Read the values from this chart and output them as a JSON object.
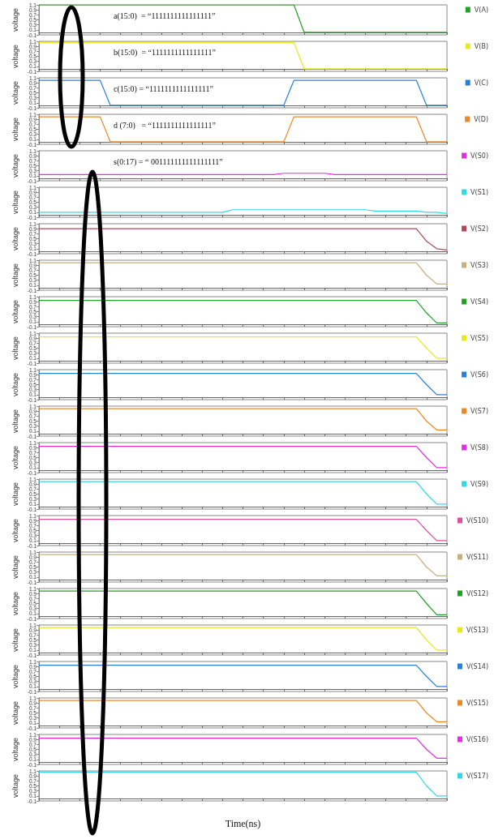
{
  "chart_data": [
    {
      "type": "line",
      "ylabel": "voltage",
      "ylim": [
        -0.1,
        1.1
      ],
      "yticks": [
        -0.1,
        0.1,
        0.3,
        0.5,
        0.7,
        0.9,
        1.1
      ],
      "tick_labels": "y",
      "legend": "right",
      "marker": "none",
      "line_style": "solid",
      "annotations": [
        "a(15:0)  = “1111111111111111”"
      ],
      "categories": [
        null,
        null,
        null,
        null,
        null,
        null,
        null,
        null,
        null,
        null,
        null,
        null,
        null,
        null,
        null,
        null,
        null,
        null,
        null,
        null,
        null,
        null,
        null,
        null,
        null,
        null,
        null,
        null,
        null,
        null,
        null,
        null,
        null,
        null,
        null,
        null,
        null,
        null,
        null,
        null,
        null
      ],
      "series": [
        {
          "name": "V(A)",
          "color": "#22a02a",
          "values": [
            1.1,
            1.1,
            1.1,
            1.1,
            1.1,
            1.1,
            1.1,
            1.1,
            1.1,
            1.1,
            1.1,
            1.1,
            1.1,
            1.1,
            1.1,
            1.1,
            1.1,
            1.1,
            1.1,
            1.1,
            1.1,
            1.1,
            1.1,
            1.1,
            1.1,
            1.1,
            0,
            0,
            0,
            0,
            0,
            0,
            0,
            0,
            0,
            0,
            0,
            0,
            0,
            0,
            0
          ]
        }
      ]
    },
    {
      "type": "line",
      "ylabel": "voltage",
      "ylim": [
        -0.1,
        1.1
      ],
      "yticks": [
        -0.1,
        0.1,
        0.3,
        0.5,
        0.7,
        0.9,
        1.1
      ],
      "tick_labels": "y",
      "legend": "right",
      "marker": "none",
      "line_style": "solid",
      "annotations": [
        "b(15:0)  = “1111111111111111”"
      ],
      "categories": [
        null,
        null,
        null,
        null,
        null,
        null,
        null,
        null,
        null,
        null,
        null,
        null,
        null,
        null,
        null,
        null,
        null,
        null,
        null,
        null,
        null,
        null,
        null,
        null,
        null,
        null,
        null,
        null,
        null,
        null,
        null,
        null,
        null,
        null,
        null,
        null,
        null,
        null,
        null,
        null,
        null
      ],
      "series": [
        {
          "name": "V(B)",
          "color": "#e8e820",
          "values": [
            1.05,
            1.05,
            1.05,
            1.05,
            1.05,
            1.05,
            1.05,
            1.05,
            1.05,
            1.05,
            1.05,
            1.05,
            1.05,
            1.05,
            1.05,
            1.05,
            1.05,
            1.05,
            1.05,
            1.05,
            1.05,
            1.05,
            1.05,
            1.05,
            1.05,
            1.05,
            0,
            0,
            0,
            0,
            0,
            0,
            0,
            0,
            0,
            0,
            0,
            0,
            0,
            0,
            0
          ]
        }
      ]
    },
    {
      "type": "line",
      "ylabel": "voltage",
      "ylim": [
        -0.1,
        1.1
      ],
      "yticks": [
        -0.1,
        0.1,
        0.3,
        0.5,
        0.7,
        0.9,
        1.1
      ],
      "tick_labels": "y",
      "legend": "right",
      "marker": "none",
      "line_style": "solid",
      "annotations": [
        "c(15:0) = “1111111111111111”"
      ],
      "categories": [
        null,
        null,
        null,
        null,
        null,
        null,
        null,
        null,
        null,
        null,
        null,
        null,
        null,
        null,
        null,
        null,
        null,
        null,
        null,
        null,
        null,
        null,
        null,
        null,
        null,
        null,
        null,
        null,
        null,
        null,
        null,
        null,
        null,
        null,
        null,
        null,
        null,
        null,
        null,
        null,
        null
      ],
      "series": [
        {
          "name": "V(C)",
          "color": "#2a80d8",
          "values": [
            1.0,
            1.0,
            1.0,
            1.0,
            1.0,
            1.0,
            1.0,
            0,
            0,
            0,
            0,
            0,
            0,
            0,
            0,
            0,
            0,
            0,
            0,
            0,
            0,
            0,
            0,
            0,
            0,
            1.0,
            1.0,
            1.0,
            1.0,
            1.0,
            1.0,
            1.0,
            1.0,
            1.0,
            1.0,
            1.0,
            1.0,
            1.0,
            0,
            0,
            0
          ]
        }
      ]
    },
    {
      "type": "line",
      "ylabel": "voltage",
      "ylim": [
        -0.1,
        1.1
      ],
      "yticks": [
        -0.1,
        0.1,
        0.3,
        0.5,
        0.7,
        0.9,
        1.1
      ],
      "tick_labels": "y",
      "legend": "right",
      "marker": "none",
      "line_style": "solid",
      "annotations": [
        "d (7:0)   = “1111111111111111”"
      ],
      "categories": [
        null,
        null,
        null,
        null,
        null,
        null,
        null,
        null,
        null,
        null,
        null,
        null,
        null,
        null,
        null,
        null,
        null,
        null,
        null,
        null,
        null,
        null,
        null,
        null,
        null,
        null,
        null,
        null,
        null,
        null,
        null,
        null,
        null,
        null,
        null,
        null,
        null,
        null,
        null,
        null,
        null
      ],
      "series": [
        {
          "name": "V(D)",
          "color": "#e8892a",
          "values": [
            1.0,
            1.0,
            1.0,
            1.0,
            1.0,
            1.0,
            1.0,
            0,
            0,
            0,
            0,
            0,
            0,
            0,
            0,
            0,
            0,
            0,
            0,
            0,
            0,
            0,
            0,
            0,
            0,
            1.0,
            1.0,
            1.0,
            1.0,
            1.0,
            1.0,
            1.0,
            1.0,
            1.0,
            1.0,
            1.0,
            1.0,
            1.0,
            0,
            0,
            0
          ]
        }
      ]
    },
    {
      "type": "line",
      "ylabel": "voltage",
      "ylim": [
        -0.1,
        1.1
      ],
      "yticks": [
        -0.1,
        0.1,
        0.3,
        0.5,
        0.7,
        0.9,
        1.1
      ],
      "tick_labels": "y",
      "legend": "right",
      "marker": "none",
      "line_style": "solid",
      "annotations": [
        "s(0:17) = “ 001111111111111111”"
      ],
      "categories": [
        null,
        null,
        null,
        null,
        null,
        null,
        null,
        null,
        null,
        null,
        null,
        null,
        null,
        null,
        null,
        null,
        null,
        null,
        null,
        null,
        null,
        null,
        null,
        null,
        null,
        null,
        null,
        null,
        null,
        null,
        null,
        null,
        null,
        null,
        null,
        null,
        null,
        null,
        null,
        null,
        null
      ],
      "series": [
        {
          "name": "V(S0)",
          "color": "#e030e0",
          "values": [
            0.15,
            0.15,
            0.15,
            0.15,
            0.15,
            0.15,
            0.15,
            0.15,
            0.15,
            0.15,
            0.15,
            0.15,
            0.15,
            0.15,
            0.15,
            0.15,
            0.15,
            0.15,
            0.15,
            0.15,
            0.15,
            0.15,
            0.15,
            0.15,
            0.2,
            0.2,
            0.2,
            0.2,
            0.2,
            0.15,
            0.15,
            0.15,
            0.15,
            0.15,
            0.15,
            0.15,
            0.15,
            0.15,
            0.15,
            0.15,
            0.15
          ]
        }
      ]
    },
    {
      "type": "line",
      "ylabel": "voltage",
      "ylim": [
        -0.1,
        1.1
      ],
      "yticks": [
        -0.1,
        0.1,
        0.3,
        0.5,
        0.7,
        0.9,
        1.1
      ],
      "tick_labels": "y",
      "legend": "right",
      "marker": "none",
      "line_style": "solid",
      "categories": [
        null,
        null,
        null,
        null,
        null,
        null,
        null,
        null,
        null,
        null,
        null,
        null,
        null,
        null,
        null,
        null,
        null,
        null,
        null,
        null,
        null,
        null,
        null,
        null,
        null,
        null,
        null,
        null,
        null,
        null,
        null,
        null,
        null,
        null,
        null,
        null,
        null,
        null,
        null,
        null,
        null
      ],
      "series": [
        {
          "name": "V(S1)",
          "color": "#30d8e8",
          "values": [
            0.1,
            0.1,
            0.1,
            0.1,
            0.1,
            0.1,
            0.1,
            0.1,
            0.1,
            0.1,
            0.1,
            0.1,
            0.1,
            0.1,
            0.1,
            0.1,
            0.1,
            0.1,
            0.1,
            0.2,
            0.2,
            0.2,
            0.2,
            0.2,
            0.2,
            0.2,
            0.2,
            0.2,
            0.2,
            0.2,
            0.2,
            0.2,
            0.2,
            0.15,
            0.15,
            0.15,
            0.15,
            0.15,
            0.1,
            0.1,
            0.05
          ]
        }
      ]
    },
    {
      "type": "line",
      "ylabel": "voltage",
      "ylim": [
        -0.1,
        1.1
      ],
      "yticks": [
        -0.1,
        0.1,
        0.3,
        0.5,
        0.7,
        0.9,
        1.1
      ],
      "tick_labels": "y",
      "legend": "right",
      "marker": "none",
      "line_style": "solid",
      "categories": [
        null,
        null,
        null,
        null,
        null,
        null,
        null,
        null,
        null,
        null,
        null,
        null,
        null,
        null,
        null,
        null,
        null,
        null,
        null,
        null,
        null,
        null,
        null,
        null,
        null,
        null,
        null,
        null,
        null,
        null,
        null,
        null,
        null,
        null,
        null,
        null,
        null,
        null,
        null,
        null,
        null
      ],
      "series": [
        {
          "name": "V(S2)",
          "color": "#b04858",
          "values": [
            0.9,
            0.9,
            0.9,
            0.9,
            0.9,
            0.9,
            0.9,
            0.9,
            0.9,
            0.9,
            0.9,
            0.9,
            0.9,
            0.9,
            0.9,
            0.9,
            0.9,
            0.9,
            0.9,
            0.9,
            0.9,
            0.9,
            0.9,
            0.9,
            0.9,
            0.9,
            0.9,
            0.9,
            0.9,
            0.9,
            0.9,
            0.9,
            0.9,
            0.9,
            0.9,
            0.9,
            0.9,
            0.9,
            0.4,
            0.1,
            0.05
          ]
        }
      ]
    },
    {
      "type": "line",
      "ylabel": "voltage",
      "ylim": [
        -0.1,
        1.1
      ],
      "yticks": [
        -0.1,
        0.1,
        0.3,
        0.5,
        0.7,
        0.9,
        1.1
      ],
      "tick_labels": "y",
      "legend": "right",
      "marker": "none",
      "line_style": "solid",
      "categories": [
        null,
        null,
        null,
        null,
        null,
        null,
        null,
        null,
        null,
        null,
        null,
        null,
        null,
        null,
        null,
        null,
        null,
        null,
        null,
        null,
        null,
        null,
        null,
        null,
        null,
        null,
        null,
        null,
        null,
        null,
        null,
        null,
        null,
        null,
        null,
        null,
        null,
        null,
        null,
        null,
        null
      ],
      "series": [
        {
          "name": "V(S3)",
          "color": "#c8b080",
          "values": [
            1.0,
            1.0,
            1.0,
            1.0,
            1.0,
            1.0,
            1.0,
            1.0,
            1.0,
            1.0,
            1.0,
            1.0,
            1.0,
            1.0,
            1.0,
            1.0,
            1.0,
            1.0,
            1.0,
            1.0,
            1.0,
            1.0,
            1.0,
            1.0,
            1.0,
            1.0,
            1.0,
            1.0,
            1.0,
            1.0,
            1.0,
            1.0,
            1.0,
            1.0,
            1.0,
            1.0,
            1.0,
            1.0,
            0.5,
            0.15,
            0.15
          ]
        }
      ]
    },
    {
      "type": "line",
      "ylabel": "voltage",
      "ylim": [
        -0.1,
        1.1
      ],
      "yticks": [
        -0.1,
        0.1,
        0.3,
        0.5,
        0.7,
        0.9,
        1.1
      ],
      "tick_labels": "y",
      "legend": "right",
      "marker": "none",
      "line_style": "solid",
      "categories": [
        null,
        null,
        null,
        null,
        null,
        null,
        null,
        null,
        null,
        null,
        null,
        null,
        null,
        null,
        null,
        null,
        null,
        null,
        null,
        null,
        null,
        null,
        null,
        null,
        null,
        null,
        null,
        null,
        null,
        null,
        null,
        null,
        null,
        null,
        null,
        null,
        null,
        null,
        null,
        null,
        null
      ],
      "series": [
        {
          "name": "V(S4)",
          "color": "#22a02a",
          "values": [
            0.95,
            0.95,
            0.95,
            0.95,
            0.95,
            0.95,
            0.95,
            0.95,
            0.95,
            0.95,
            0.95,
            0.95,
            0.95,
            0.95,
            0.95,
            0.95,
            0.95,
            0.95,
            0.95,
            0.95,
            0.95,
            0.95,
            0.95,
            0.95,
            0.95,
            0.95,
            0.95,
            0.95,
            0.95,
            0.95,
            0.95,
            0.95,
            0.95,
            0.95,
            0.95,
            0.95,
            0.95,
            0.95,
            0.45,
            0.05,
            0.05
          ]
        }
      ]
    },
    {
      "type": "line",
      "ylabel": "voltage",
      "ylim": [
        -0.1,
        1.1
      ],
      "yticks": [
        -0.1,
        0.1,
        0.3,
        0.5,
        0.7,
        0.9,
        1.1
      ],
      "tick_labels": "y",
      "legend": "right",
      "marker": "none",
      "line_style": "solid",
      "categories": [
        null,
        null,
        null,
        null,
        null,
        null,
        null,
        null,
        null,
        null,
        null,
        null,
        null,
        null,
        null,
        null,
        null,
        null,
        null,
        null,
        null,
        null,
        null,
        null,
        null,
        null,
        null,
        null,
        null,
        null,
        null,
        null,
        null,
        null,
        null,
        null,
        null,
        null,
        null,
        null,
        null
      ],
      "series": [
        {
          "name": "V(S5)",
          "color": "#e8e820",
          "values": [
            0.95,
            0.95,
            0.95,
            0.95,
            0.95,
            0.95,
            0.95,
            0.95,
            0.95,
            0.95,
            0.95,
            0.95,
            0.95,
            0.95,
            0.95,
            0.95,
            0.95,
            0.95,
            0.95,
            0.95,
            0.95,
            0.95,
            0.95,
            0.95,
            0.95,
            0.95,
            0.95,
            0.95,
            0.95,
            0.95,
            0.95,
            0.95,
            0.95,
            0.95,
            0.95,
            0.95,
            0.95,
            0.95,
            0.5,
            0.1,
            0.1
          ]
        }
      ]
    },
    {
      "type": "line",
      "ylabel": "voltage",
      "ylim": [
        -0.1,
        1.1
      ],
      "yticks": [
        -0.1,
        0.1,
        0.3,
        0.5,
        0.7,
        0.9,
        1.1
      ],
      "tick_labels": "y",
      "legend": "right",
      "marker": "none",
      "line_style": "solid",
      "categories": [
        null,
        null,
        null,
        null,
        null,
        null,
        null,
        null,
        null,
        null,
        null,
        null,
        null,
        null,
        null,
        null,
        null,
        null,
        null,
        null,
        null,
        null,
        null,
        null,
        null,
        null,
        null,
        null,
        null,
        null,
        null,
        null,
        null,
        null,
        null,
        null,
        null,
        null,
        null,
        null,
        null
      ],
      "series": [
        {
          "name": "V(S6)",
          "color": "#2a80d8",
          "values": [
            0.95,
            0.95,
            0.95,
            0.95,
            0.95,
            0.95,
            0.95,
            0.95,
            0.95,
            0.95,
            0.95,
            0.95,
            0.95,
            0.95,
            0.95,
            0.95,
            0.95,
            0.95,
            0.95,
            0.95,
            0.95,
            0.95,
            0.95,
            0.95,
            0.95,
            0.95,
            0.95,
            0.95,
            0.95,
            0.95,
            0.95,
            0.95,
            0.95,
            0.95,
            0.95,
            0.95,
            0.95,
            0.95,
            0.5,
            0.1,
            0.1
          ]
        }
      ]
    },
    {
      "type": "line",
      "ylabel": "voltage",
      "ylim": [
        -0.1,
        1.1
      ],
      "yticks": [
        -0.1,
        0.1,
        0.3,
        0.5,
        0.7,
        0.9,
        1.1
      ],
      "tick_labels": "y",
      "legend": "right",
      "marker": "none",
      "line_style": "solid",
      "categories": [
        null,
        null,
        null,
        null,
        null,
        null,
        null,
        null,
        null,
        null,
        null,
        null,
        null,
        null,
        null,
        null,
        null,
        null,
        null,
        null,
        null,
        null,
        null,
        null,
        null,
        null,
        null,
        null,
        null,
        null,
        null,
        null,
        null,
        null,
        null,
        null,
        null,
        null,
        null,
        null,
        null
      ],
      "series": [
        {
          "name": "V(S7)",
          "color": "#e8892a",
          "values": [
            1.0,
            1.0,
            1.0,
            1.0,
            1.0,
            1.0,
            1.0,
            1.0,
            1.0,
            1.0,
            1.0,
            1.0,
            1.0,
            1.0,
            1.0,
            1.0,
            1.0,
            1.0,
            1.0,
            1.0,
            1.0,
            1.0,
            1.0,
            1.0,
            1.0,
            1.0,
            1.0,
            1.0,
            1.0,
            1.0,
            1.0,
            1.0,
            1.0,
            1.0,
            1.0,
            1.0,
            1.0,
            1.0,
            0.5,
            0.15,
            0.15
          ]
        }
      ]
    },
    {
      "type": "line",
      "ylabel": "voltage",
      "ylim": [
        -0.1,
        1.1
      ],
      "yticks": [
        -0.1,
        0.1,
        0.3,
        0.5,
        0.7,
        0.9,
        1.1
      ],
      "tick_labels": "y",
      "legend": "right",
      "marker": "none",
      "line_style": "solid",
      "categories": [
        null,
        null,
        null,
        null,
        null,
        null,
        null,
        null,
        null,
        null,
        null,
        null,
        null,
        null,
        null,
        null,
        null,
        null,
        null,
        null,
        null,
        null,
        null,
        null,
        null,
        null,
        null,
        null,
        null,
        null,
        null,
        null,
        null,
        null,
        null,
        null,
        null,
        null,
        null,
        null,
        null
      ],
      "series": [
        {
          "name": "V(S8)",
          "color": "#e030e0",
          "values": [
            0.95,
            0.95,
            0.95,
            0.95,
            0.95,
            0.95,
            0.95,
            0.95,
            0.95,
            0.95,
            0.95,
            0.95,
            0.95,
            0.95,
            0.95,
            0.95,
            0.95,
            0.95,
            0.95,
            0.95,
            0.95,
            0.95,
            0.95,
            0.95,
            0.95,
            0.95,
            0.95,
            0.95,
            0.95,
            0.95,
            0.95,
            0.95,
            0.95,
            0.95,
            0.95,
            0.95,
            0.95,
            0.95,
            0.5,
            0.1,
            0.1
          ]
        }
      ]
    },
    {
      "type": "line",
      "ylabel": "voltage",
      "ylim": [
        -0.1,
        1.1
      ],
      "yticks": [
        -0.1,
        0.1,
        0.3,
        0.5,
        0.7,
        0.9,
        1.1
      ],
      "tick_labels": "y",
      "legend": "right",
      "marker": "none",
      "line_style": "solid",
      "categories": [
        null,
        null,
        null,
        null,
        null,
        null,
        null,
        null,
        null,
        null,
        null,
        null,
        null,
        null,
        null,
        null,
        null,
        null,
        null,
        null,
        null,
        null,
        null,
        null,
        null,
        null,
        null,
        null,
        null,
        null,
        null,
        null,
        null,
        null,
        null,
        null,
        null,
        null,
        null,
        null,
        null
      ],
      "series": [
        {
          "name": "V(S9)",
          "color": "#30d8e8",
          "values": [
            1.0,
            1.0,
            1.0,
            1.0,
            1.0,
            1.0,
            1.0,
            1.0,
            1.0,
            1.0,
            1.0,
            1.0,
            1.0,
            1.0,
            1.0,
            1.0,
            1.0,
            1.0,
            1.0,
            1.0,
            1.0,
            1.0,
            1.0,
            1.0,
            1.0,
            1.0,
            1.0,
            1.0,
            1.0,
            1.0,
            1.0,
            1.0,
            1.0,
            1.0,
            1.0,
            1.0,
            1.0,
            1.0,
            0.5,
            0.1,
            0.1
          ]
        }
      ]
    },
    {
      "type": "line",
      "ylabel": "voltage",
      "ylim": [
        -0.1,
        1.1
      ],
      "yticks": [
        -0.1,
        0.1,
        0.3,
        0.5,
        0.7,
        0.9,
        1.1
      ],
      "tick_labels": "y",
      "legend": "right",
      "marker": "none",
      "line_style": "solid",
      "categories": [
        null,
        null,
        null,
        null,
        null,
        null,
        null,
        null,
        null,
        null,
        null,
        null,
        null,
        null,
        null,
        null,
        null,
        null,
        null,
        null,
        null,
        null,
        null,
        null,
        null,
        null,
        null,
        null,
        null,
        null,
        null,
        null,
        null,
        null,
        null,
        null,
        null,
        null,
        null,
        null,
        null
      ],
      "series": [
        {
          "name": "V(S10)",
          "color": "#e050a0",
          "values": [
            0.95,
            0.95,
            0.95,
            0.95,
            0.95,
            0.95,
            0.95,
            0.95,
            0.95,
            0.95,
            0.95,
            0.95,
            0.95,
            0.95,
            0.95,
            0.95,
            0.95,
            0.95,
            0.95,
            0.95,
            0.95,
            0.95,
            0.95,
            0.95,
            0.95,
            0.95,
            0.95,
            0.95,
            0.95,
            0.95,
            0.95,
            0.95,
            0.95,
            0.95,
            0.95,
            0.95,
            0.95,
            0.95,
            0.5,
            0.1,
            0.1
          ]
        }
      ]
    },
    {
      "type": "line",
      "ylabel": "voltage",
      "ylim": [
        -0.1,
        1.1
      ],
      "yticks": [
        -0.1,
        0.1,
        0.3,
        0.5,
        0.7,
        0.9,
        1.1
      ],
      "tick_labels": "y",
      "legend": "right",
      "marker": "none",
      "line_style": "solid",
      "categories": [
        null,
        null,
        null,
        null,
        null,
        null,
        null,
        null,
        null,
        null,
        null,
        null,
        null,
        null,
        null,
        null,
        null,
        null,
        null,
        null,
        null,
        null,
        null,
        null,
        null,
        null,
        null,
        null,
        null,
        null,
        null,
        null,
        null,
        null,
        null,
        null,
        null,
        null,
        null,
        null,
        null
      ],
      "series": [
        {
          "name": "V(S11)",
          "color": "#c8b080",
          "values": [
            1.0,
            1.0,
            1.0,
            1.0,
            1.0,
            1.0,
            1.0,
            1.0,
            1.0,
            1.0,
            1.0,
            1.0,
            1.0,
            1.0,
            1.0,
            1.0,
            1.0,
            1.0,
            1.0,
            1.0,
            1.0,
            1.0,
            1.0,
            1.0,
            1.0,
            1.0,
            1.0,
            1.0,
            1.0,
            1.0,
            1.0,
            1.0,
            1.0,
            1.0,
            1.0,
            1.0,
            1.0,
            1.0,
            0.5,
            0.15,
            0.15
          ]
        }
      ]
    },
    {
      "type": "line",
      "ylabel": "voltage",
      "ylim": [
        -0.1,
        1.1
      ],
      "yticks": [
        -0.1,
        0.1,
        0.3,
        0.5,
        0.7,
        0.9,
        1.1
      ],
      "tick_labels": "y",
      "legend": "right",
      "marker": "none",
      "line_style": "solid",
      "categories": [
        null,
        null,
        null,
        null,
        null,
        null,
        null,
        null,
        null,
        null,
        null,
        null,
        null,
        null,
        null,
        null,
        null,
        null,
        null,
        null,
        null,
        null,
        null,
        null,
        null,
        null,
        null,
        null,
        null,
        null,
        null,
        null,
        null,
        null,
        null,
        null,
        null,
        null,
        null,
        null,
        null
      ],
      "series": [
        {
          "name": "V(S12)",
          "color": "#22a02a",
          "values": [
            1.0,
            1.0,
            1.0,
            1.0,
            1.0,
            1.0,
            1.0,
            1.0,
            1.0,
            1.0,
            1.0,
            1.0,
            1.0,
            1.0,
            1.0,
            1.0,
            1.0,
            1.0,
            1.0,
            1.0,
            1.0,
            1.0,
            1.0,
            1.0,
            1.0,
            1.0,
            1.0,
            1.0,
            1.0,
            1.0,
            1.0,
            1.0,
            1.0,
            1.0,
            1.0,
            1.0,
            1.0,
            1.0,
            0.5,
            0.05,
            0.05
          ]
        }
      ]
    },
    {
      "type": "line",
      "ylabel": "voltage",
      "ylim": [
        -0.1,
        1.1
      ],
      "yticks": [
        -0.1,
        0.1,
        0.3,
        0.5,
        0.7,
        0.9,
        1.1
      ],
      "tick_labels": "y",
      "legend": "right",
      "marker": "none",
      "line_style": "solid",
      "categories": [
        null,
        null,
        null,
        null,
        null,
        null,
        null,
        null,
        null,
        null,
        null,
        null,
        null,
        null,
        null,
        null,
        null,
        null,
        null,
        null,
        null,
        null,
        null,
        null,
        null,
        null,
        null,
        null,
        null,
        null,
        null,
        null,
        null,
        null,
        null,
        null,
        null,
        null,
        null,
        null,
        null
      ],
      "series": [
        {
          "name": "V(S13)",
          "color": "#e8e820",
          "values": [
            1.0,
            1.0,
            1.0,
            1.0,
            1.0,
            1.0,
            1.0,
            1.0,
            1.0,
            1.0,
            1.0,
            1.0,
            1.0,
            1.0,
            1.0,
            1.0,
            1.0,
            1.0,
            1.0,
            1.0,
            1.0,
            1.0,
            1.0,
            1.0,
            1.0,
            1.0,
            1.0,
            1.0,
            1.0,
            1.0,
            1.0,
            1.0,
            1.0,
            1.0,
            1.0,
            1.0,
            1.0,
            1.0,
            0.5,
            0.1,
            0.1
          ]
        }
      ]
    },
    {
      "type": "line",
      "ylabel": "voltage",
      "ylim": [
        -0.1,
        1.1
      ],
      "yticks": [
        -0.1,
        0.1,
        0.3,
        0.5,
        0.7,
        0.9,
        1.1
      ],
      "tick_labels": "y",
      "legend": "right",
      "marker": "none",
      "line_style": "solid",
      "categories": [
        null,
        null,
        null,
        null,
        null,
        null,
        null,
        null,
        null,
        null,
        null,
        null,
        null,
        null,
        null,
        null,
        null,
        null,
        null,
        null,
        null,
        null,
        null,
        null,
        null,
        null,
        null,
        null,
        null,
        null,
        null,
        null,
        null,
        null,
        null,
        null,
        null,
        null,
        null,
        null,
        null
      ],
      "series": [
        {
          "name": "V(S14)",
          "color": "#2a80d8",
          "values": [
            0.95,
            0.95,
            0.95,
            0.95,
            0.95,
            0.95,
            0.95,
            0.95,
            0.95,
            0.95,
            0.95,
            0.95,
            0.95,
            0.95,
            0.95,
            0.95,
            0.95,
            0.95,
            0.95,
            0.95,
            0.95,
            0.95,
            0.95,
            0.95,
            0.95,
            0.95,
            0.95,
            0.95,
            0.95,
            0.95,
            0.95,
            0.95,
            0.95,
            0.95,
            0.95,
            0.95,
            0.95,
            0.95,
            0.5,
            0.1,
            0.1
          ]
        }
      ]
    },
    {
      "type": "line",
      "ylabel": "voltage",
      "ylim": [
        -0.1,
        1.1
      ],
      "yticks": [
        -0.1,
        0.1,
        0.3,
        0.5,
        0.7,
        0.9,
        1.1
      ],
      "tick_labels": "y",
      "legend": "right",
      "marker": "none",
      "line_style": "solid",
      "categories": [
        null,
        null,
        null,
        null,
        null,
        null,
        null,
        null,
        null,
        null,
        null,
        null,
        null,
        null,
        null,
        null,
        null,
        null,
        null,
        null,
        null,
        null,
        null,
        null,
        null,
        null,
        null,
        null,
        null,
        null,
        null,
        null,
        null,
        null,
        null,
        null,
        null,
        null,
        null,
        null,
        null
      ],
      "series": [
        {
          "name": "V(S15)",
          "color": "#e8892a",
          "values": [
            1.0,
            1.0,
            1.0,
            1.0,
            1.0,
            1.0,
            1.0,
            1.0,
            1.0,
            1.0,
            1.0,
            1.0,
            1.0,
            1.0,
            1.0,
            1.0,
            1.0,
            1.0,
            1.0,
            1.0,
            1.0,
            1.0,
            1.0,
            1.0,
            1.0,
            1.0,
            1.0,
            1.0,
            1.0,
            1.0,
            1.0,
            1.0,
            1.0,
            1.0,
            1.0,
            1.0,
            1.0,
            1.0,
            0.5,
            0.15,
            0.15
          ]
        }
      ]
    },
    {
      "type": "line",
      "ylabel": "voltage",
      "ylim": [
        -0.1,
        1.1
      ],
      "yticks": [
        -0.1,
        0.1,
        0.3,
        0.5,
        0.7,
        0.9,
        1.1
      ],
      "tick_labels": "y",
      "legend": "right",
      "marker": "none",
      "line_style": "solid",
      "categories": [
        null,
        null,
        null,
        null,
        null,
        null,
        null,
        null,
        null,
        null,
        null,
        null,
        null,
        null,
        null,
        null,
        null,
        null,
        null,
        null,
        null,
        null,
        null,
        null,
        null,
        null,
        null,
        null,
        null,
        null,
        null,
        null,
        null,
        null,
        null,
        null,
        null,
        null,
        null,
        null,
        null
      ],
      "series": [
        {
          "name": "V(S16)",
          "color": "#e030e0",
          "values": [
            0.95,
            0.95,
            0.95,
            0.95,
            0.95,
            0.95,
            0.95,
            0.95,
            0.95,
            0.95,
            0.95,
            0.95,
            0.95,
            0.95,
            0.95,
            0.95,
            0.95,
            0.95,
            0.95,
            0.95,
            0.95,
            0.95,
            0.95,
            0.95,
            0.95,
            0.95,
            0.95,
            0.95,
            0.95,
            0.95,
            0.95,
            0.95,
            0.95,
            0.95,
            0.95,
            0.95,
            0.95,
            0.95,
            0.5,
            0.15,
            0.15
          ]
        }
      ]
    },
    {
      "type": "line",
      "ylabel": "voltage",
      "xlabel": "Time(ns)",
      "ylim": [
        -0.1,
        1.1
      ],
      "yticks": [
        -0.1,
        0.1,
        0.3,
        0.5,
        0.7,
        0.9,
        1.1
      ],
      "tick_labels": "y",
      "legend": "right",
      "marker": "none",
      "line_style": "solid",
      "categories": [
        null,
        null,
        null,
        null,
        null,
        null,
        null,
        null,
        null,
        null,
        null,
        null,
        null,
        null,
        null,
        null,
        null,
        null,
        null,
        null,
        null,
        null,
        null,
        null,
        null,
        null,
        null,
        null,
        null,
        null,
        null,
        null,
        null,
        null,
        null,
        null,
        null,
        null,
        null,
        null,
        null
      ],
      "series": [
        {
          "name": "V(S17)",
          "color": "#30d8e8",
          "values": [
            1.05,
            1.05,
            1.05,
            1.05,
            1.05,
            1.05,
            1.05,
            1.05,
            1.05,
            1.05,
            1.05,
            1.05,
            1.05,
            1.05,
            1.05,
            1.05,
            1.05,
            1.05,
            1.05,
            1.05,
            1.05,
            1.05,
            1.05,
            1.05,
            1.05,
            1.05,
            1.05,
            1.05,
            1.05,
            1.05,
            1.05,
            1.05,
            1.05,
            1.05,
            1.05,
            1.05,
            1.05,
            1.05,
            0.5,
            0.1,
            0.1
          ]
        }
      ]
    }
  ]
}
